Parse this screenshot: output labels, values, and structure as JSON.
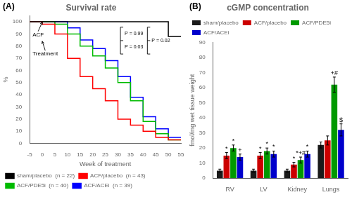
{
  "chart_data": [
    {
      "type": "step",
      "title": "Survival rate",
      "xlabel": "Week of treatment",
      "ylabel": "%",
      "x": [
        -5,
        0,
        5,
        10,
        15,
        20,
        25,
        30,
        35,
        40,
        45,
        50,
        55
      ],
      "series": [
        {
          "name": "sham/placebo  (n = 22)",
          "color": "#000000",
          "values": [
            100,
            100,
            100,
            100,
            100,
            100,
            100,
            100,
            100,
            100,
            100,
            100,
            88
          ]
        },
        {
          "name": "ACF/placebo  (n = 43)",
          "color": "#ff0000",
          "values": [
            100,
            100,
            98,
            90,
            70,
            55,
            45,
            35,
            20,
            15,
            10,
            5,
            3
          ]
        },
        {
          "name": "ACF/PDE5i  (n = 40)",
          "color": "#00bb00",
          "values": [
            100,
            100,
            100,
            98,
            90,
            80,
            72,
            62,
            50,
            35,
            18,
            8,
            3
          ]
        },
        {
          "name": "ACF/ACEi  (n = 39)",
          "color": "#0000ff",
          "values": [
            100,
            100,
            100,
            100,
            95,
            85,
            78,
            68,
            55,
            38,
            22,
            12,
            5
          ]
        }
      ],
      "xlim": [
        -5,
        55
      ],
      "ylim": [
        0,
        105
      ],
      "xticks": [
        -5,
        0,
        5,
        10,
        15,
        20,
        25,
        30,
        35,
        40,
        45,
        50,
        55
      ],
      "yticks": [
        0,
        10,
        20,
        30,
        40,
        50,
        60,
        70,
        80,
        90,
        100
      ],
      "grid": false,
      "legend": "lower left",
      "annotations": [
        "(A)",
        "ACF",
        "Treatment",
        "P = 0.99",
        "P = 0.03",
        "P = 0.02"
      ]
    },
    {
      "type": "bar",
      "title": "cGMP concentration",
      "ylabel": "fmol/mg wet tissue weight",
      "categories": [
        "RV",
        "LV",
        "Kidney",
        "Lungs"
      ],
      "series": [
        {
          "name": "sham/placebo",
          "color": "#1a1a1a",
          "values": [
            5,
            5,
            5,
            22
          ],
          "errors": [
            1,
            1,
            1,
            2
          ]
        },
        {
          "name": "ACF/placebo",
          "color": "#cc0000",
          "values": [
            15,
            15,
            9,
            25
          ],
          "errors": [
            2,
            2,
            1.5,
            3
          ]
        },
        {
          "name": "ACF/PDE5i",
          "color": "#009900",
          "values": [
            20,
            18,
            12,
            62
          ],
          "errors": [
            2,
            2,
            2,
            5
          ]
        },
        {
          "name": "ACF/ACEi",
          "color": "#0000cc",
          "values": [
            14,
            16,
            16,
            32
          ],
          "errors": [
            2,
            2,
            2,
            4
          ]
        }
      ],
      "ylim": [
        0,
        90
      ],
      "yticks": [
        0,
        10,
        20,
        30,
        40,
        50,
        60,
        70,
        80,
        90
      ],
      "grid": false,
      "legend": "upper left",
      "annotations": [
        "(B)",
        {
          "text": "*",
          "category": "RV",
          "series": "ACF/placebo"
        },
        {
          "text": "*",
          "category": "RV",
          "series": "ACF/PDE5i"
        },
        {
          "text": "+",
          "category": "RV",
          "series": "ACF/ACEi"
        },
        {
          "text": "*",
          "category": "LV",
          "series": "ACF/placebo"
        },
        {
          "text": "*",
          "category": "LV",
          "series": "ACF/PDE5i"
        },
        {
          "text": "*",
          "category": "LV",
          "series": "ACF/ACEi"
        },
        {
          "text": "*",
          "category": "Kidney",
          "series": "ACF/placebo"
        },
        {
          "text": "*+#",
          "category": "Kidney",
          "series": "ACF/PDE5i"
        },
        {
          "text": "*",
          "category": "Kidney",
          "series": "ACF/ACEi"
        },
        {
          "text": "+#",
          "category": "Lungs",
          "series": "ACF/PDE5i"
        },
        {
          "text": "$",
          "category": "Lungs",
          "series": "ACF/ACEi"
        }
      ]
    }
  ]
}
